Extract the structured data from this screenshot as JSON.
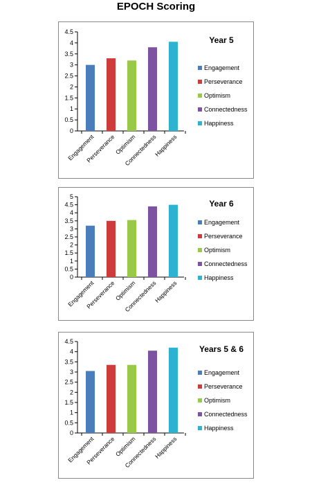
{
  "page_title": "EPOCH Scoring",
  "colors": {
    "Engagement": "#4a7ebb",
    "Perseverance": "#cf3b3b",
    "Optimism": "#98c947",
    "Connectedness": "#7d52a0",
    "Happiness": "#2cb3cf",
    "axis": "#000000",
    "border": "#888888"
  },
  "chart_data": [
    {
      "type": "bar",
      "title": "Year 5",
      "categories": [
        "Engagement",
        "Perseverance",
        "Optimism",
        "Connectedness",
        "Happiness"
      ],
      "values": [
        3.0,
        3.3,
        3.2,
        3.8,
        4.05
      ],
      "ylim": [
        0,
        4.5
      ],
      "yticks": [
        "0",
        "0.5",
        "1",
        "1.5",
        "2",
        "2.5",
        "3",
        "3.5",
        "4",
        "4.5"
      ],
      "legend": [
        "Engagement",
        "Perseverance",
        "Optimism",
        "Connectedness",
        "Happiness"
      ],
      "legend_position": "right",
      "grid": false
    },
    {
      "type": "bar",
      "title": "Year 6",
      "categories": [
        "Engagement",
        "Perseverance",
        "Optimism",
        "Connectedness",
        "Happiness"
      ],
      "values": [
        3.2,
        3.5,
        3.55,
        4.4,
        4.5
      ],
      "ylim": [
        0,
        5
      ],
      "yticks": [
        "0",
        "0.5",
        "1",
        "1.5",
        "2",
        "2.5",
        "3",
        "3.5",
        "4",
        "4.5",
        "5"
      ],
      "legend": [
        "Engagement",
        "Perseverance",
        "Optimism",
        "Connectedness",
        "Happiness"
      ],
      "legend_position": "right",
      "grid": false
    },
    {
      "type": "bar",
      "title": "Years 5 & 6",
      "categories": [
        "Engagement",
        "Perseverance",
        "Optimism",
        "Connectedness",
        "Happiness"
      ],
      "values": [
        3.05,
        3.35,
        3.35,
        4.05,
        4.2
      ],
      "ylim": [
        0,
        4.5
      ],
      "yticks": [
        "0",
        "0.5",
        "1",
        "1.5",
        "2",
        "2.5",
        "3",
        "3.5",
        "4",
        "4.5"
      ],
      "legend": [
        "Engagement",
        "Perseverance",
        "Optimism",
        "Connectedness",
        "Happiness"
      ],
      "legend_position": "right",
      "grid": false
    }
  ]
}
